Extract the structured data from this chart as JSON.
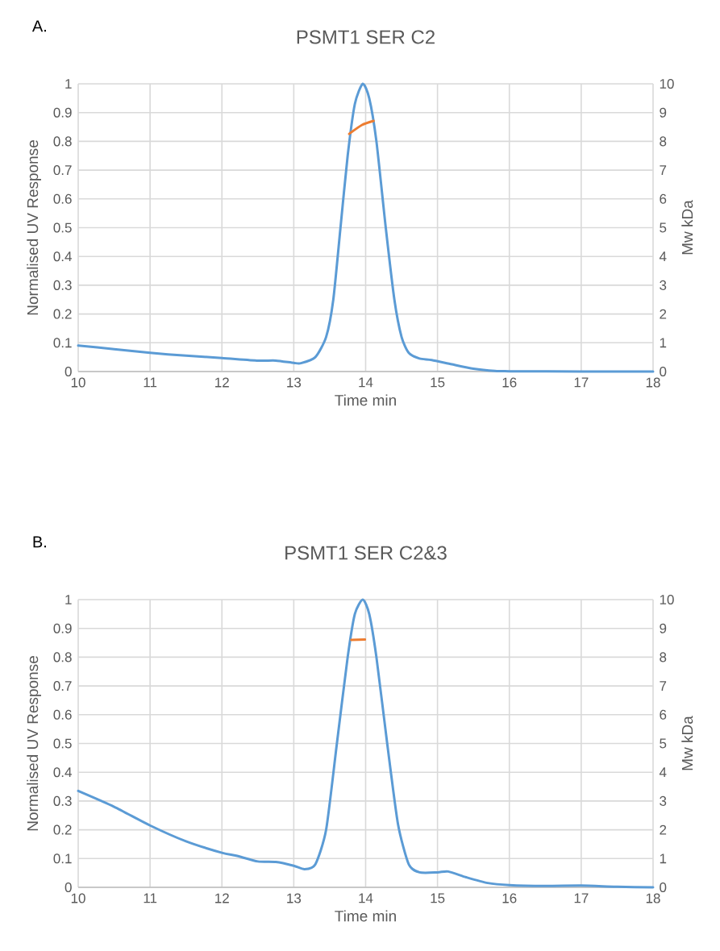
{
  "chart_data": [
    {
      "type": "line",
      "title": "PSMT1 SER C2",
      "xlabel": "Time min",
      "ylabel": "Normalised UV Response",
      "y2label": "Mw kDa",
      "annotations": [
        "A."
      ],
      "xlim": [
        10,
        18
      ],
      "xticks": [
        10,
        11,
        12,
        13,
        14,
        15,
        16,
        17,
        18
      ],
      "ylim": [
        0,
        1
      ],
      "yticks": [
        0,
        0.1,
        0.2,
        0.3,
        0.4,
        0.5,
        0.6,
        0.7,
        0.8,
        0.9,
        1
      ],
      "y2lim": [
        0,
        10
      ],
      "y2ticks": [
        0,
        1,
        2,
        3,
        4,
        5,
        6,
        7,
        8,
        9,
        10
      ],
      "grid": true,
      "series": [
        {
          "color": "#5b9bd5",
          "x": [
            10,
            10.5,
            11,
            11.5,
            12,
            12.5,
            12.75,
            13,
            13.1,
            13.3,
            13.45,
            13.55,
            13.65,
            13.75,
            13.85,
            13.96,
            14.05,
            14.15,
            14.28,
            14.4,
            14.5,
            14.6,
            14.75,
            14.92,
            15.2,
            15.5,
            15.8,
            16,
            17,
            18
          ],
          "values": [
            0.09,
            0.078,
            0.065,
            0.055,
            0.047,
            0.038,
            0.038,
            0.03,
            0.029,
            0.05,
            0.12,
            0.25,
            0.5,
            0.75,
            0.93,
            1.0,
            0.95,
            0.8,
            0.5,
            0.25,
            0.12,
            0.065,
            0.045,
            0.04,
            0.025,
            0.01,
            0.002,
            0.001,
            0.0,
            0.0
          ]
        },
        {
          "color": "#ed7d31",
          "axis": "y2",
          "x": [
            13.77,
            13.95,
            14.11
          ],
          "values": [
            8.26,
            8.57,
            8.71
          ]
        }
      ]
    },
    {
      "type": "line",
      "title": "PSMT1 SER C2&3",
      "xlabel": "Time min",
      "ylabel": "Normalised UV Response",
      "y2label": "Mw kDa",
      "annotations": [
        "B."
      ],
      "xlim": [
        10,
        18
      ],
      "xticks": [
        10,
        11,
        12,
        13,
        14,
        15,
        16,
        17,
        18
      ],
      "ylim": [
        0,
        1
      ],
      "yticks": [
        0,
        0.1,
        0.2,
        0.3,
        0.4,
        0.5,
        0.6,
        0.7,
        0.8,
        0.9,
        1
      ],
      "y2lim": [
        0,
        10
      ],
      "y2ticks": [
        0,
        1,
        2,
        3,
        4,
        5,
        6,
        7,
        8,
        9,
        10
      ],
      "grid": true,
      "series": [
        {
          "color": "#5b9bd5",
          "x": [
            10,
            10.5,
            11,
            11.5,
            12,
            12.2,
            12.5,
            12.75,
            13,
            13.15,
            13.3,
            13.45,
            13.6,
            13.75,
            13.85,
            13.96,
            14.05,
            14.15,
            14.3,
            14.45,
            14.6,
            14.75,
            15,
            15.15,
            15.4,
            15.7,
            16,
            16.5,
            17,
            17.5,
            18
          ],
          "values": [
            0.335,
            0.28,
            0.215,
            0.16,
            0.12,
            0.11,
            0.09,
            0.088,
            0.075,
            0.063,
            0.08,
            0.2,
            0.5,
            0.8,
            0.95,
            1.0,
            0.95,
            0.8,
            0.5,
            0.22,
            0.08,
            0.052,
            0.052,
            0.055,
            0.035,
            0.015,
            0.008,
            0.005,
            0.006,
            0.002,
            0.0
          ]
        },
        {
          "color": "#ed7d31",
          "axis": "y2",
          "x": [
            13.8,
            13.99
          ],
          "values": [
            8.6,
            8.61
          ]
        }
      ]
    }
  ]
}
